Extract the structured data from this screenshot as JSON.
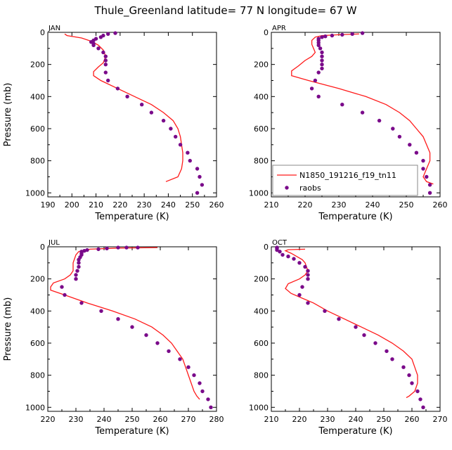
{
  "title": "Thule_Greenland  latitude= 77 N longitude= 67 W",
  "colors": {
    "model": "#ff1a1a",
    "obs": "#7a0a8a",
    "axis": "#000000"
  },
  "chart_data": [
    {
      "type": "line",
      "panel": "JAN",
      "xlabel": "Temperature (K)",
      "ylabel": "Pressure (mb)",
      "xlim": [
        190,
        260
      ],
      "ylim": [
        0,
        1025
      ],
      "xticks": [
        "190",
        "200",
        "210",
        "220",
        "230",
        "240",
        "250",
        "260"
      ],
      "yticks": [
        "0",
        "200",
        "400",
        "600",
        "800",
        "1000"
      ],
      "series": [
        {
          "name": "N1850_191216_f19_tn11",
          "kind": "line",
          "points": [
            [
              197,
              10
            ],
            [
              198,
              20
            ],
            [
              204,
              35
            ],
            [
              208,
              55
            ],
            [
              211,
              80
            ],
            [
              213,
              110
            ],
            [
              214,
              150
            ],
            [
              213,
              190
            ],
            [
              211,
              215
            ],
            [
              209,
              245
            ],
            [
              209,
              270
            ],
            [
              212,
              300
            ],
            [
              219,
              350
            ],
            [
              226,
              400
            ],
            [
              233,
              450
            ],
            [
              238,
              500
            ],
            [
              242,
              550
            ],
            [
              244,
              600
            ],
            [
              245,
              650
            ],
            [
              245.5,
              700
            ],
            [
              246,
              750
            ],
            [
              246,
              800
            ],
            [
              245.5,
              850
            ],
            [
              244,
              900
            ],
            [
              239,
              930
            ]
          ]
        },
        {
          "name": "raobs",
          "kind": "points",
          "points": [
            [
              218,
              5
            ],
            [
              215,
              10
            ],
            [
              213,
              20
            ],
            [
              212,
              30
            ],
            [
              210,
              40
            ],
            [
              209,
              50
            ],
            [
              208,
              60
            ],
            [
              209,
              70
            ],
            [
              209,
              80
            ],
            [
              211,
              100
            ],
            [
              213,
              125
            ],
            [
              214,
              150
            ],
            [
              214,
              175
            ],
            [
              214,
              200
            ],
            [
              214,
              250
            ],
            [
              215,
              300
            ],
            [
              219,
              350
            ],
            [
              223,
              400
            ],
            [
              229,
              450
            ],
            [
              233,
              500
            ],
            [
              238,
              550
            ],
            [
              241,
              600
            ],
            [
              243,
              650
            ],
            [
              245,
              700
            ],
            [
              248,
              750
            ],
            [
              249,
              800
            ],
            [
              252,
              850
            ],
            [
              253,
              900
            ],
            [
              254,
              950
            ],
            [
              252,
              1000
            ]
          ]
        }
      ]
    },
    {
      "type": "line",
      "panel": "APR",
      "xlabel": "Temperature (K)",
      "ylabel": "",
      "xlim": [
        210,
        260
      ],
      "ylim": [
        0,
        1025
      ],
      "xticks": [
        "210",
        "220",
        "230",
        "240",
        "250",
        "260"
      ],
      "yticks": [
        "0",
        "200",
        "400",
        "600",
        "800",
        "1000"
      ],
      "series": [
        {
          "name": "N1850_191216_f19_tn11",
          "kind": "line",
          "points": [
            [
              236,
              10
            ],
            [
              230,
              15
            ],
            [
              225,
              20
            ],
            [
              223,
              30
            ],
            [
              222,
              50
            ],
            [
              222,
              75
            ],
            [
              222.5,
              100
            ],
            [
              223,
              125
            ],
            [
              222,
              150
            ],
            [
              220,
              175
            ],
            [
              218,
              210
            ],
            [
              216,
              240
            ],
            [
              216,
              270
            ],
            [
              221,
              300
            ],
            [
              230,
              350
            ],
            [
              238,
              400
            ],
            [
              244,
              450
            ],
            [
              248,
              500
            ],
            [
              251,
              550
            ],
            [
              253,
              600
            ],
            [
              255,
              650
            ],
            [
              256,
              700
            ],
            [
              257,
              750
            ],
            [
              257,
              800
            ],
            [
              256,
              850
            ],
            [
              255,
              900
            ],
            [
              256,
              930
            ],
            [
              258,
              945
            ]
          ]
        },
        {
          "name": "raobs",
          "kind": "points",
          "points": [
            [
              237,
              5
            ],
            [
              234,
              10
            ],
            [
              231,
              15
            ],
            [
              228,
              20
            ],
            [
              226,
              25
            ],
            [
              225,
              30
            ],
            [
              224,
              40
            ],
            [
              224,
              50
            ],
            [
              224,
              65
            ],
            [
              224,
              80
            ],
            [
              224.5,
              100
            ],
            [
              225,
              125
            ],
            [
              225,
              150
            ],
            [
              225,
              175
            ],
            [
              225,
              200
            ],
            [
              225,
              225
            ],
            [
              224,
              250
            ],
            [
              223,
              300
            ],
            [
              222,
              350
            ],
            [
              224,
              400
            ],
            [
              231,
              450
            ],
            [
              237,
              500
            ],
            [
              242,
              550
            ],
            [
              246,
              600
            ],
            [
              248,
              650
            ],
            [
              251,
              700
            ],
            [
              253,
              750
            ],
            [
              255,
              800
            ],
            [
              255,
              850
            ],
            [
              256,
              900
            ],
            [
              257,
              950
            ],
            [
              257,
              1000
            ]
          ]
        }
      ]
    },
    {
      "type": "line",
      "panel": "JUL",
      "xlabel": "Temperature (K)",
      "ylabel": "Pressure (mb)",
      "xlim": [
        220,
        280
      ],
      "ylim": [
        0,
        1025
      ],
      "xticks": [
        "220",
        "230",
        "240",
        "250",
        "260",
        "270",
        "280"
      ],
      "yticks": [
        "0",
        "200",
        "400",
        "600",
        "800",
        "1000"
      ],
      "series": [
        {
          "name": "N1850_191216_f19_tn11",
          "kind": "line",
          "points": [
            [
              259,
              5
            ],
            [
              245,
              8
            ],
            [
              235,
              15
            ],
            [
              231,
              30
            ],
            [
              230,
              50
            ],
            [
              229.5,
              75
            ],
            [
              229,
              100
            ],
            [
              229,
              125
            ],
            [
              229,
              150
            ],
            [
              228,
              175
            ],
            [
              226,
              200
            ],
            [
              222,
              225
            ],
            [
              221,
              250
            ],
            [
              221,
              270
            ],
            [
              226,
              300
            ],
            [
              234,
              350
            ],
            [
              243,
              400
            ],
            [
              251,
              450
            ],
            [
              257,
              500
            ],
            [
              261,
              550
            ],
            [
              264,
              600
            ],
            [
              266,
              650
            ],
            [
              268,
              700
            ],
            [
              269,
              750
            ],
            [
              270,
              800
            ],
            [
              271,
              850
            ],
            [
              272,
              900
            ],
            [
              273,
              930
            ],
            [
              274,
              950
            ]
          ]
        },
        {
          "name": "raobs",
          "kind": "points",
          "points": [
            [
              252,
              5
            ],
            [
              248,
              5
            ],
            [
              245,
              5
            ],
            [
              241,
              10
            ],
            [
              238,
              15
            ],
            [
              234,
              20
            ],
            [
              233,
              25
            ],
            [
              232,
              30
            ],
            [
              232,
              40
            ],
            [
              232,
              50
            ],
            [
              231.5,
              65
            ],
            [
              231,
              80
            ],
            [
              231,
              100
            ],
            [
              231,
              125
            ],
            [
              230.5,
              150
            ],
            [
              230,
              175
            ],
            [
              230,
              200
            ],
            [
              225,
              250
            ],
            [
              226,
              300
            ],
            [
              232,
              350
            ],
            [
              239,
              400
            ],
            [
              245,
              450
            ],
            [
              250,
              500
            ],
            [
              255,
              550
            ],
            [
              259,
              600
            ],
            [
              263,
              650
            ],
            [
              267,
              700
            ],
            [
              270,
              750
            ],
            [
              272,
              800
            ],
            [
              274,
              850
            ],
            [
              275,
              900
            ],
            [
              277,
              950
            ],
            [
              278,
              1000
            ]
          ]
        }
      ]
    },
    {
      "type": "line",
      "panel": "OCT",
      "xlabel": "Temperature (K)",
      "ylabel": "",
      "xlim": [
        210,
        270
      ],
      "ylim": [
        0,
        1025
      ],
      "xticks": [
        "210",
        "220",
        "230",
        "240",
        "250",
        "260",
        "270"
      ],
      "yticks": [
        "0",
        "200",
        "400",
        "600",
        "800",
        "1000"
      ],
      "series": [
        {
          "name": "N1850_191216_f19_tn11",
          "kind": "line",
          "points": [
            [
              222,
              15
            ],
            [
              216,
              18
            ],
            [
              215,
              25
            ],
            [
              217,
              40
            ],
            [
              219,
              60
            ],
            [
              221,
              80
            ],
            [
              222,
              100
            ],
            [
              222.5,
              125
            ],
            [
              223,
              150
            ],
            [
              222,
              175
            ],
            [
              220,
              200
            ],
            [
              216,
              230
            ],
            [
              215,
              260
            ],
            [
              217,
              290
            ],
            [
              221,
              320
            ],
            [
              225,
              350
            ],
            [
              230,
              400
            ],
            [
              236,
              450
            ],
            [
              242,
              500
            ],
            [
              248,
              550
            ],
            [
              253,
              600
            ],
            [
              257,
              650
            ],
            [
              260,
              700
            ],
            [
              261,
              750
            ],
            [
              262,
              800
            ],
            [
              262,
              850
            ],
            [
              261,
              900
            ],
            [
              259,
              930
            ],
            [
              258,
              940
            ]
          ]
        },
        {
          "name": "raobs",
          "kind": "points",
          "points": [
            [
              212,
              5
            ],
            [
              212,
              10
            ],
            [
              212,
              20
            ],
            [
              213,
              30
            ],
            [
              214,
              50
            ],
            [
              216,
              60
            ],
            [
              218,
              75
            ],
            [
              220,
              100
            ],
            [
              222,
              125
            ],
            [
              223,
              150
            ],
            [
              223,
              175
            ],
            [
              223,
              200
            ],
            [
              221,
              250
            ],
            [
              220,
              300
            ],
            [
              223,
              350
            ],
            [
              229,
              400
            ],
            [
              234,
              450
            ],
            [
              240,
              500
            ],
            [
              243,
              550
            ],
            [
              247,
              600
            ],
            [
              251,
              650
            ],
            [
              253,
              700
            ],
            [
              257,
              750
            ],
            [
              259,
              800
            ],
            [
              260,
              850
            ],
            [
              262,
              900
            ],
            [
              263,
              950
            ],
            [
              264,
              1000
            ]
          ]
        }
      ]
    }
  ],
  "legend": {
    "panel": "APR",
    "position": "bottom-left",
    "items": [
      {
        "label": "N1850_191216_f19_tn11",
        "kind": "line"
      },
      {
        "label": "raobs",
        "kind": "points"
      }
    ]
  }
}
